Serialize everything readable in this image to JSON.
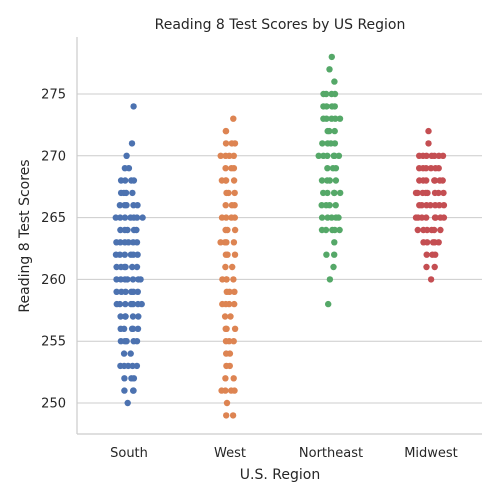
{
  "chart_data": {
    "type": "scatter",
    "title": "Reading 8 Test Scores by US Region",
    "xlabel": "U.S. Region",
    "ylabel": "Reading 8 Test Scores",
    "categories": [
      "South",
      "West",
      "Northeast",
      "Midwest"
    ],
    "yticks": [
      250,
      255,
      260,
      265,
      270,
      275
    ],
    "ylim": [
      247.5,
      279
    ],
    "grid": "horizontal",
    "colors": {
      "South": "#4c72b0",
      "West": "#dd8452",
      "Northeast": "#55a868",
      "Midwest": "#c44e52"
    },
    "series": [
      {
        "category": "South",
        "values": [
          250,
          251,
          251,
          251,
          252,
          252,
          252,
          253,
          253,
          253,
          253,
          253,
          254,
          254,
          255,
          255,
          255,
          255,
          255,
          256,
          256,
          256,
          256,
          256,
          257,
          257,
          257,
          257,
          257,
          258,
          258,
          258,
          258,
          258,
          258,
          258,
          259,
          259,
          259,
          259,
          259,
          259,
          260,
          260,
          260,
          260,
          260,
          260,
          260,
          261,
          261,
          261,
          261,
          261,
          261,
          262,
          262,
          262,
          262,
          262,
          262,
          263,
          263,
          263,
          263,
          263,
          263,
          264,
          264,
          264,
          264,
          264,
          265,
          265,
          265,
          265,
          265,
          265,
          265,
          266,
          266,
          266,
          266,
          266,
          267,
          267,
          267,
          267,
          268,
          268,
          268,
          268,
          269,
          269,
          270,
          271,
          274
        ]
      },
      {
        "category": "West",
        "values": [
          249,
          249,
          250,
          251,
          251,
          251,
          251,
          252,
          252,
          253,
          253,
          254,
          254,
          255,
          255,
          255,
          256,
          256,
          256,
          257,
          257,
          258,
          258,
          258,
          258,
          259,
          259,
          259,
          260,
          260,
          260,
          260,
          261,
          261,
          262,
          262,
          262,
          263,
          263,
          263,
          263,
          264,
          264,
          264,
          265,
          265,
          265,
          265,
          266,
          266,
          266,
          267,
          267,
          267,
          268,
          268,
          268,
          268,
          269,
          269,
          269,
          270,
          270,
          270,
          270,
          271,
          271,
          271,
          272,
          272,
          273
        ]
      },
      {
        "category": "Northeast",
        "values": [
          258,
          260,
          261,
          262,
          262,
          263,
          264,
          264,
          264,
          264,
          264,
          265,
          265,
          265,
          265,
          265,
          266,
          266,
          266,
          266,
          267,
          267,
          267,
          267,
          267,
          268,
          268,
          268,
          268,
          269,
          269,
          269,
          270,
          270,
          270,
          270,
          270,
          270,
          271,
          271,
          271,
          271,
          272,
          272,
          272,
          273,
          273,
          273,
          273,
          273,
          274,
          274,
          274,
          274,
          275,
          275,
          275,
          275,
          276,
          277,
          278
        ]
      },
      {
        "category": "Midwest",
        "values": [
          260,
          261,
          261,
          262,
          262,
          262,
          263,
          263,
          263,
          263,
          263,
          264,
          264,
          264,
          264,
          264,
          264,
          265,
          265,
          265,
          265,
          265,
          265,
          265,
          265,
          266,
          266,
          266,
          266,
          266,
          266,
          266,
          267,
          267,
          267,
          267,
          267,
          267,
          267,
          267,
          268,
          268,
          268,
          268,
          268,
          268,
          268,
          269,
          269,
          269,
          269,
          269,
          269,
          270,
          270,
          270,
          270,
          270,
          270,
          270,
          271,
          272
        ]
      }
    ]
  }
}
